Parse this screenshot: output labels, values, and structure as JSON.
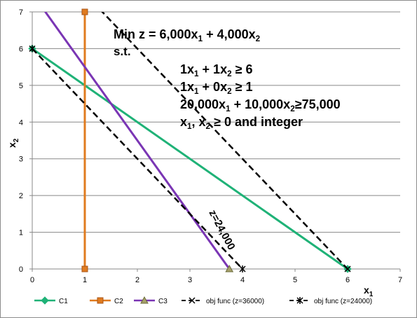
{
  "chart_data": {
    "type": "line",
    "title": "",
    "xlabel": "x",
    "xlabel_sub": "1",
    "ylabel": "x",
    "ylabel_sub": "2",
    "xlim": [
      0,
      7
    ],
    "ylim": [
      0,
      7
    ],
    "x_ticks": [
      "0",
      "1",
      "2",
      "3",
      "4",
      "5",
      "6",
      "7"
    ],
    "y_ticks": [
      "0",
      "1",
      "2",
      "3",
      "4",
      "5",
      "6",
      "7"
    ],
    "grid": "horizontal",
    "legend_position": "bottom",
    "series": [
      {
        "name": "C1",
        "color": "#1fb277",
        "marker": "diamond",
        "dashed": false,
        "points": [
          [
            0,
            6
          ],
          [
            6,
            0
          ]
        ]
      },
      {
        "name": "C2",
        "color": "#e07b1f",
        "marker": "square",
        "dashed": false,
        "points": [
          [
            1,
            7
          ],
          [
            1,
            0
          ]
        ]
      },
      {
        "name": "C3",
        "color": "#7a35b4",
        "marker": "triangle",
        "dashed": false,
        "points": [
          [
            0,
            7.5
          ],
          [
            3.75,
            0
          ]
        ]
      },
      {
        "name": "obj func (z=36000)",
        "color": "#000000",
        "marker": "x",
        "dashed": true,
        "points": [
          [
            0,
            9
          ],
          [
            6,
            0
          ]
        ]
      },
      {
        "name": "obj func (z=24000)",
        "color": "#000000",
        "marker": "star",
        "dashed": true,
        "points": [
          [
            0,
            6
          ],
          [
            4,
            0
          ]
        ]
      }
    ]
  },
  "annotations": {
    "objective": {
      "p1": "Min z = 6,000x",
      "s1": "1",
      "p2": " + 4,000x",
      "s2": "2"
    },
    "st": "s.t.",
    "c1": {
      "p1": "1x",
      "s1": "1",
      "p2": " + 1x",
      "s2": "2",
      "p3": " ≥ 6"
    },
    "c2": {
      "p1": "1x",
      "s1": "1",
      "p2": " + 0x",
      "s2": "2",
      "p3": " ≥ 1"
    },
    "c3": {
      "p1": "20,000x",
      "s1": "1",
      "p2": " + 10,000x",
      "s2": "2",
      "p3": "≥75,000"
    },
    "c4": {
      "p1": "x",
      "s1": "1",
      "p2": ", x",
      "s2": "2",
      "p3": " ≥ 0 and integer"
    },
    "z_label": "z=24,000"
  }
}
